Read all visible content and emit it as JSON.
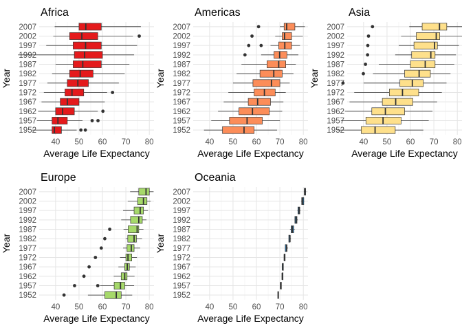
{
  "chart_data": {
    "type": "boxplot",
    "orientation": "horizontal",
    "xlabel": "Average Life Expectancy",
    "ylabel": "Year",
    "xlim": [
      33,
      82
    ],
    "xticks": [
      40,
      50,
      60,
      70,
      80
    ],
    "categories": [
      "1952",
      "1957",
      "1962",
      "1967",
      "1972",
      "1977",
      "1982",
      "1987",
      "1992",
      "1997",
      "2002",
      "2007"
    ],
    "grid": true,
    "legend": "none",
    "facets": [
      {
        "name": "Africa",
        "color": "#e41a1c",
        "boxes": [
          {
            "year": "1952",
            "min": 30.0,
            "q1": 38.5,
            "median": 39.5,
            "q3": 42.5,
            "max": 49.0,
            "outliers": [
              50.8,
              52.7
            ]
          },
          {
            "year": "1957",
            "min": 32.0,
            "q1": 38.5,
            "median": 41.0,
            "q3": 45.0,
            "max": 51.5,
            "outliers": [
              55.6,
              58.1
            ]
          },
          {
            "year": "1962",
            "min": 32.5,
            "q1": 40.0,
            "median": 43.0,
            "q3": 48.0,
            "max": 58.0,
            "outliers": [
              60.2
            ]
          },
          {
            "year": "1967",
            "min": 34.0,
            "q1": 42.0,
            "median": 45.0,
            "q3": 50.0,
            "max": 61.0,
            "outliers": []
          },
          {
            "year": "1972",
            "min": 35.0,
            "q1": 44.0,
            "median": 47.0,
            "q3": 52.0,
            "max": 62.0,
            "outliers": [
              64.3
            ]
          },
          {
            "year": "1977",
            "min": 36.5,
            "q1": 45.0,
            "median": 49.5,
            "q3": 54.0,
            "max": 67.0,
            "outliers": []
          },
          {
            "year": "1982",
            "min": 38.5,
            "q1": 46.0,
            "median": 50.5,
            "q3": 56.0,
            "max": 69.5,
            "outliers": []
          },
          {
            "year": "1987",
            "min": 40.0,
            "q1": 47.5,
            "median": 51.6,
            "q3": 59.5,
            "max": 71.5,
            "outliers": []
          },
          {
            "year": "1992",
            "min": 24.0,
            "q1": 48.0,
            "median": 52.4,
            "q3": 60.0,
            "max": 73.5,
            "outliers": []
          },
          {
            "year": "1997",
            "min": 36.0,
            "q1": 47.5,
            "median": 52.8,
            "q3": 59.5,
            "max": 74.8,
            "outliers": []
          },
          {
            "year": "2002",
            "min": 39.0,
            "q1": 46.0,
            "median": 51.2,
            "q3": 58.0,
            "max": 73.0,
            "outliers": [
              75.7
            ]
          },
          {
            "year": "2007",
            "min": 39.6,
            "q1": 50.0,
            "median": 52.9,
            "q3": 59.5,
            "max": 76.4,
            "outliers": []
          }
        ]
      },
      {
        "name": "Americas",
        "color": "#fc8d59",
        "boxes": [
          {
            "year": "1952",
            "min": 37.6,
            "q1": 45.5,
            "median": 54.7,
            "q3": 59.0,
            "max": 68.8,
            "outliers": []
          },
          {
            "year": "1957",
            "min": 40.7,
            "q1": 48.5,
            "median": 56.0,
            "q3": 62.5,
            "max": 70.0,
            "outliers": []
          },
          {
            "year": "1962",
            "min": 43.6,
            "q1": 52.5,
            "median": 58.3,
            "q3": 65.5,
            "max": 71.0,
            "outliers": []
          },
          {
            "year": "1967",
            "min": 46.0,
            "q1": 56.5,
            "median": 60.5,
            "q3": 66.0,
            "max": 71.5,
            "outliers": []
          },
          {
            "year": "1972",
            "min": 48.0,
            "q1": 59.0,
            "median": 63.4,
            "q3": 68.0,
            "max": 72.5,
            "outliers": []
          },
          {
            "year": "1977",
            "min": 50.0,
            "q1": 58.5,
            "median": 66.4,
            "q3": 70.0,
            "max": 74.2,
            "outliers": []
          },
          {
            "year": "1982",
            "min": 51.5,
            "q1": 61.5,
            "median": 67.4,
            "q3": 71.0,
            "max": 75.8,
            "outliers": []
          },
          {
            "year": "1987",
            "min": 53.6,
            "q1": 64.5,
            "median": 69.5,
            "q3": 72.5,
            "max": 76.8,
            "outliers": []
          },
          {
            "year": "1992",
            "min": 62.0,
            "q1": 67.5,
            "median": 69.9,
            "q3": 73.0,
            "max": 77.9,
            "outliers": [
              55.1
            ]
          },
          {
            "year": "1997",
            "min": 66.0,
            "q1": 69.5,
            "median": 72.1,
            "q3": 75.0,
            "max": 78.6,
            "outliers": [
              56.7,
              62.0
            ]
          },
          {
            "year": "2002",
            "min": 68.0,
            "q1": 71.0,
            "median": 72.0,
            "q3": 75.0,
            "max": 79.8,
            "outliers": [
              58.1
            ]
          },
          {
            "year": "2007",
            "min": 70.0,
            "q1": 71.8,
            "median": 72.9,
            "q3": 76.4,
            "max": 80.7,
            "outliers": [
              60.9
            ]
          }
        ]
      },
      {
        "name": "Asia",
        "color": "#fee08b",
        "boxes": [
          {
            "year": "1952",
            "min": 28.8,
            "q1": 39.0,
            "median": 44.9,
            "q3": 53.5,
            "max": 65.5,
            "outliers": []
          },
          {
            "year": "1957",
            "min": 30.3,
            "q1": 41.0,
            "median": 48.3,
            "q3": 56.0,
            "max": 67.8,
            "outliers": []
          },
          {
            "year": "1962",
            "min": 32.0,
            "q1": 43.5,
            "median": 49.3,
            "q3": 57.5,
            "max": 69.4,
            "outliers": []
          },
          {
            "year": "1967",
            "min": 34.0,
            "q1": 48.0,
            "median": 53.7,
            "q3": 61.0,
            "max": 71.4,
            "outliers": []
          },
          {
            "year": "1972",
            "min": 36.0,
            "q1": 51.0,
            "median": 56.6,
            "q3": 63.5,
            "max": 73.4,
            "outliers": []
          },
          {
            "year": "1977",
            "min": 40.0,
            "q1": 55.5,
            "median": 60.8,
            "q3": 65.5,
            "max": 75.4,
            "outliers": [
              31.2
            ]
          },
          {
            "year": "1982",
            "min": 44.0,
            "q1": 57.5,
            "median": 63.7,
            "q3": 68.5,
            "max": 77.1,
            "outliers": [
              39.9
            ]
          },
          {
            "year": "1987",
            "min": 46.5,
            "q1": 60.0,
            "median": 66.3,
            "q3": 70.5,
            "max": 78.7,
            "outliers": [
              40.8
            ]
          },
          {
            "year": "1992",
            "min": 53.5,
            "q1": 60.5,
            "median": 68.7,
            "q3": 70.5,
            "max": 79.4,
            "outliers": [
              41.7
            ]
          },
          {
            "year": "1997",
            "min": 55.0,
            "q1": 61.5,
            "median": 70.3,
            "q3": 71.5,
            "max": 80.7,
            "outliers": [
              41.8
            ]
          },
          {
            "year": "2002",
            "min": 56.0,
            "q1": 62.5,
            "median": 71.0,
            "q3": 72.5,
            "max": 82.0,
            "outliers": [
              42.1
            ]
          },
          {
            "year": "2007",
            "min": 59.5,
            "q1": 65.0,
            "median": 72.4,
            "q3": 75.5,
            "max": 82.6,
            "outliers": [
              43.8
            ]
          }
        ]
      },
      {
        "name": "Europe",
        "color": "#a6d96a",
        "boxes": [
          {
            "year": "1952",
            "min": 53.8,
            "q1": 61.0,
            "median": 65.9,
            "q3": 68.0,
            "max": 72.7,
            "outliers": [
              43.6
            ]
          },
          {
            "year": "1957",
            "min": 59.0,
            "q1": 65.0,
            "median": 67.7,
            "q3": 69.5,
            "max": 73.5,
            "outliers": [
              48.1,
              58.0
            ]
          },
          {
            "year": "1962",
            "min": 64.8,
            "q1": 68.0,
            "median": 69.5,
            "q3": 70.5,
            "max": 73.7,
            "outliers": [
              52.1
            ]
          },
          {
            "year": "1967",
            "min": 66.8,
            "q1": 69.5,
            "median": 70.6,
            "q3": 71.5,
            "max": 74.2,
            "outliers": [
              54.3
            ]
          },
          {
            "year": "1972",
            "min": 67.5,
            "q1": 70.0,
            "median": 70.9,
            "q3": 72.5,
            "max": 74.7,
            "outliers": [
              57.0
            ]
          },
          {
            "year": "1977",
            "min": 68.8,
            "q1": 70.5,
            "median": 72.3,
            "q3": 73.5,
            "max": 76.1,
            "outliers": [
              59.5
            ]
          },
          {
            "year": "1982",
            "min": 69.9,
            "q1": 70.8,
            "median": 73.5,
            "q3": 74.5,
            "max": 76.9,
            "outliers": [
              61.0
            ]
          },
          {
            "year": "1987",
            "min": 69.0,
            "q1": 71.0,
            "median": 74.8,
            "q3": 75.5,
            "max": 77.5,
            "outliers": [
              63.1
            ]
          },
          {
            "year": "1992",
            "min": 68.0,
            "q1": 72.0,
            "median": 75.5,
            "q3": 77.0,
            "max": 78.8,
            "outliers": []
          },
          {
            "year": "1997",
            "min": 68.8,
            "q1": 73.5,
            "median": 76.1,
            "q3": 77.5,
            "max": 79.4,
            "outliers": []
          },
          {
            "year": "2002",
            "min": 70.8,
            "q1": 75.0,
            "median": 77.5,
            "q3": 79.0,
            "max": 80.6,
            "outliers": []
          },
          {
            "year": "2007",
            "min": 71.8,
            "q1": 75.5,
            "median": 78.6,
            "q3": 80.0,
            "max": 81.8,
            "outliers": []
          }
        ]
      },
      {
        "name": "Oceania",
        "color": "#2c7bb6",
        "boxes": [
          {
            "year": "1952",
            "min": 69.1,
            "q1": 69.1,
            "median": 69.3,
            "q3": 69.3,
            "max": 69.4,
            "outliers": []
          },
          {
            "year": "1957",
            "min": 70.2,
            "q1": 70.3,
            "median": 70.3,
            "q3": 70.3,
            "max": 70.3,
            "outliers": []
          },
          {
            "year": "1962",
            "min": 70.9,
            "q1": 71.0,
            "median": 71.0,
            "q3": 71.2,
            "max": 71.2,
            "outliers": []
          },
          {
            "year": "1967",
            "min": 71.1,
            "q1": 71.1,
            "median": 71.1,
            "q3": 71.5,
            "max": 71.5,
            "outliers": []
          },
          {
            "year": "1972",
            "min": 71.9,
            "q1": 71.9,
            "median": 71.9,
            "q3": 71.9,
            "max": 71.9,
            "outliers": []
          },
          {
            "year": "1977",
            "min": 72.2,
            "q1": 72.3,
            "median": 72.9,
            "q3": 73.0,
            "max": 73.5,
            "outliers": []
          },
          {
            "year": "1982",
            "min": 73.8,
            "q1": 73.8,
            "median": 74.3,
            "q3": 74.3,
            "max": 74.7,
            "outliers": []
          },
          {
            "year": "1987",
            "min": 74.3,
            "q1": 74.8,
            "median": 75.3,
            "q3": 75.9,
            "max": 76.3,
            "outliers": []
          },
          {
            "year": "1992",
            "min": 76.3,
            "q1": 76.4,
            "median": 76.9,
            "q3": 77.3,
            "max": 77.6,
            "outliers": []
          },
          {
            "year": "1997",
            "min": 77.5,
            "q1": 77.7,
            "median": 78.2,
            "q3": 78.5,
            "max": 78.8,
            "outliers": []
          },
          {
            "year": "2002",
            "min": 79.1,
            "q1": 79.3,
            "median": 79.7,
            "q3": 80.2,
            "max": 80.4,
            "outliers": []
          },
          {
            "year": "2007",
            "min": 80.2,
            "q1": 80.4,
            "median": 80.7,
            "q3": 81.0,
            "max": 81.2,
            "outliers": []
          }
        ]
      }
    ]
  }
}
